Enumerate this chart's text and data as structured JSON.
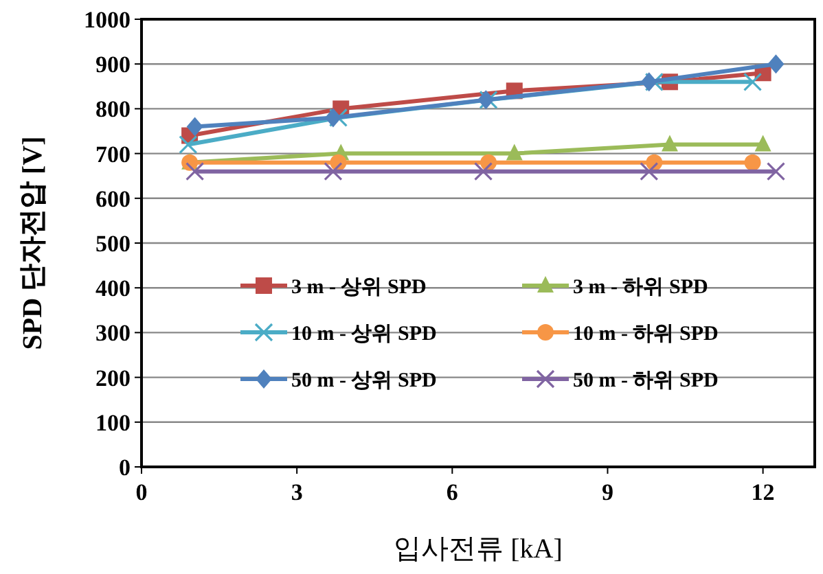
{
  "chart_data": {
    "type": "line",
    "xlabel": "입사전류 [kA]",
    "ylabel": "SPD 단자전압 [V]",
    "xlim": [
      0,
      13
    ],
    "xticks": [
      0,
      3,
      6,
      9,
      12
    ],
    "ylim": [
      0,
      1000
    ],
    "yticks": [
      0,
      100,
      200,
      300,
      400,
      500,
      600,
      700,
      800,
      900,
      1000
    ],
    "grid": "y",
    "legend": "bottom",
    "series": [
      {
        "name": "3 m - 상위 SPD",
        "color": "#be4b48",
        "marker": "square",
        "x": [
          0.93,
          3.85,
          7.2,
          10.2,
          12.0
        ],
        "values": [
          740,
          800,
          840,
          860,
          880
        ]
      },
      {
        "name": "3 m - 하위 SPD",
        "color": "#9bbb59",
        "marker": "triangle",
        "x": [
          0.93,
          3.85,
          7.2,
          10.2,
          12.0
        ],
        "values": [
          680,
          700,
          700,
          720,
          720
        ]
      },
      {
        "name": "10 m - 상위 SPD",
        "color": "#4bacc6",
        "marker": "cross",
        "x": [
          0.9,
          3.8,
          6.7,
          9.9,
          11.8
        ],
        "values": [
          720,
          780,
          820,
          860,
          860
        ]
      },
      {
        "name": "10 m - 하위 SPD",
        "color": "#f79646",
        "marker": "circle",
        "x": [
          0.93,
          3.8,
          6.7,
          9.9,
          11.8
        ],
        "values": [
          680,
          680,
          680,
          680,
          680
        ]
      },
      {
        "name": "50 m - 상위 SPD",
        "color": "#4f81bd",
        "marker": "diamond",
        "x": [
          1.03,
          3.7,
          6.65,
          9.8,
          12.25
        ],
        "values": [
          760,
          780,
          820,
          860,
          900
        ]
      },
      {
        "name": "50 m - 하위 SPD",
        "color": "#8064a2",
        "marker": "cross",
        "x": [
          1.03,
          3.7,
          6.6,
          9.8,
          12.25
        ],
        "values": [
          660,
          660,
          660,
          660,
          660
        ]
      }
    ]
  }
}
